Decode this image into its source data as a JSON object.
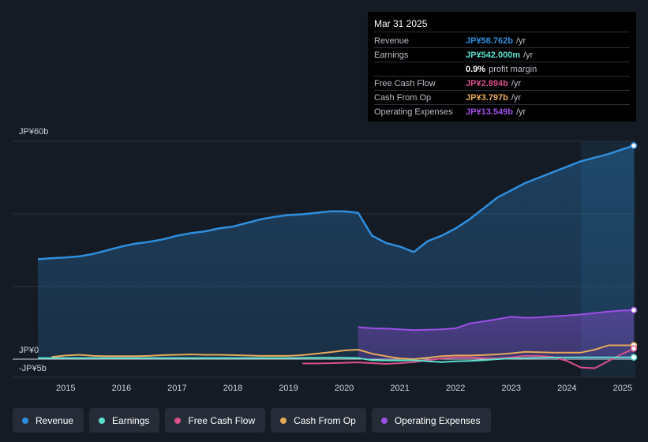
{
  "chart_data": {
    "type": "line",
    "y_axis": {
      "top_label": "JP¥60b",
      "zero_label": "JP¥0",
      "bottom_label": "-JP¥5b",
      "ylim": [
        -5,
        60
      ]
    },
    "x_ticks": [
      "2015",
      "2016",
      "2017",
      "2018",
      "2019",
      "2020",
      "2021",
      "2022",
      "2023",
      "2024",
      "2025"
    ],
    "x_range": [
      2014.5,
      2025.2
    ],
    "highlight_from": 2024.25,
    "series": [
      {
        "name": "Revenue",
        "color": "#2f8fdf",
        "fill": true,
        "x": [
          2014.5,
          2014.75,
          2015.0,
          2015.25,
          2015.5,
          2015.75,
          2016.0,
          2016.25,
          2016.5,
          2016.75,
          2017.0,
          2017.25,
          2017.5,
          2017.75,
          2018.0,
          2018.25,
          2018.5,
          2018.75,
          2019.0,
          2019.25,
          2019.5,
          2019.75,
          2020.0,
          2020.25,
          2020.5,
          2020.75,
          2021.0,
          2021.25,
          2021.5,
          2021.75,
          2022.0,
          2022.25,
          2022.5,
          2022.75,
          2023.0,
          2023.25,
          2023.5,
          2023.75,
          2024.0,
          2024.25,
          2024.5,
          2024.75,
          2025.0,
          2025.2
        ],
        "values": [
          27.5,
          27.8,
          28.0,
          28.3,
          29.0,
          30.0,
          31.0,
          31.8,
          32.3,
          33.0,
          34.0,
          34.7,
          35.2,
          36.0,
          36.5,
          37.5,
          38.5,
          39.2,
          39.7,
          39.9,
          40.3,
          40.7,
          40.7,
          40.3,
          34.0,
          32.0,
          31.0,
          29.5,
          32.5,
          34.0,
          36.0,
          38.5,
          41.5,
          44.5,
          46.5,
          48.5,
          50.0,
          51.5,
          53.0,
          54.5,
          55.5,
          56.5,
          57.8,
          58.8
        ]
      },
      {
        "name": "Operating Expenses",
        "color": "#9d4ee6",
        "fill": true,
        "x": [
          2020.25,
          2020.5,
          2020.75,
          2021.0,
          2021.25,
          2021.5,
          2021.75,
          2022.0,
          2022.25,
          2022.5,
          2022.75,
          2023.0,
          2023.25,
          2023.5,
          2023.75,
          2024.0,
          2024.25,
          2024.5,
          2024.75,
          2025.0,
          2025.2
        ],
        "values": [
          8.8,
          8.5,
          8.4,
          8.2,
          8.0,
          8.1,
          8.2,
          8.5,
          9.8,
          10.4,
          11.0,
          11.7,
          11.4,
          11.5,
          11.8,
          12.0,
          12.3,
          12.7,
          13.1,
          13.4,
          13.5
        ]
      },
      {
        "name": "Cash From Op",
        "color": "#e8a95a",
        "fill": false,
        "x": [
          2014.75,
          2015.0,
          2015.25,
          2015.5,
          2015.75,
          2016.0,
          2016.25,
          2016.5,
          2016.75,
          2017.0,
          2017.25,
          2017.5,
          2017.75,
          2018.0,
          2018.25,
          2018.5,
          2018.75,
          2019.0,
          2019.25,
          2019.5,
          2019.75,
          2020.0,
          2020.25,
          2020.5,
          2020.75,
          2021.0,
          2021.25,
          2021.5,
          2021.75,
          2022.0,
          2022.25,
          2022.5,
          2022.75,
          2023.0,
          2023.25,
          2023.5,
          2023.75,
          2024.0,
          2024.25,
          2024.5,
          2024.75,
          2025.0,
          2025.2
        ],
        "values": [
          0.6,
          1.0,
          1.2,
          0.9,
          0.8,
          0.8,
          0.8,
          0.9,
          1.1,
          1.2,
          1.3,
          1.2,
          1.2,
          1.1,
          1.0,
          0.9,
          0.9,
          0.9,
          1.1,
          1.5,
          1.9,
          2.4,
          2.6,
          1.5,
          0.8,
          0.2,
          0.0,
          0.4,
          0.8,
          1.0,
          1.0,
          1.1,
          1.3,
          1.6,
          2.0,
          1.9,
          1.8,
          1.8,
          1.8,
          2.6,
          3.8,
          3.8,
          3.8
        ]
      },
      {
        "name": "Free Cash Flow",
        "color": "#d9508a",
        "fill": false,
        "x": [
          2019.25,
          2019.5,
          2019.75,
          2020.0,
          2020.25,
          2020.5,
          2020.75,
          2021.0,
          2021.25,
          2021.5,
          2021.75,
          2022.0,
          2022.25,
          2022.5,
          2022.75,
          2023.0,
          2023.25,
          2023.5,
          2023.75,
          2024.0,
          2024.25,
          2024.5,
          2024.75,
          2025.0,
          2025.2
        ],
        "values": [
          -1.2,
          -1.2,
          -1.1,
          -1.0,
          -0.9,
          -1.1,
          -1.3,
          -1.1,
          -0.8,
          -0.3,
          0.2,
          0.5,
          0.5,
          0.3,
          0.2,
          0.5,
          0.9,
          0.9,
          0.6,
          -0.5,
          -2.3,
          -2.5,
          -0.5,
          1.5,
          2.9
        ]
      },
      {
        "name": "Earnings",
        "color": "#5ce0cc",
        "fill": false,
        "x": [
          2014.5,
          2015.0,
          2015.5,
          2016.0,
          2016.5,
          2017.0,
          2017.5,
          2018.0,
          2018.5,
          2019.0,
          2019.5,
          2020.0,
          2020.25,
          2020.5,
          2020.75,
          2021.0,
          2021.25,
          2021.5,
          2021.75,
          2022.0,
          2022.25,
          2022.5,
          2022.75,
          2023.0,
          2023.5,
          2024.0,
          2024.5,
          2025.0,
          2025.2
        ],
        "values": [
          0.3,
          0.3,
          0.3,
          0.3,
          0.3,
          0.3,
          0.3,
          0.3,
          0.3,
          0.3,
          0.4,
          0.4,
          0.3,
          -0.3,
          -0.4,
          -0.4,
          -0.3,
          -0.6,
          -0.8,
          -0.6,
          -0.5,
          -0.3,
          0.0,
          0.2,
          0.4,
          0.5,
          0.5,
          0.5,
          0.5
        ]
      }
    ]
  },
  "tooltip": {
    "date": "Mar 31 2025",
    "rows": [
      {
        "label": "Revenue",
        "value": "JP¥58.762b",
        "unit": "/yr",
        "color": "#2f8fdf"
      },
      {
        "label": "Earnings",
        "value": "JP¥542.000m",
        "unit": "/yr",
        "color": "#5ce0cc"
      },
      {
        "label": "",
        "value": "0.9%",
        "unit": "profit margin",
        "color": "#ffffff"
      },
      {
        "label": "Free Cash Flow",
        "value": "JP¥2.894b",
        "unit": "/yr",
        "color": "#d9508a"
      },
      {
        "label": "Cash From Op",
        "value": "JP¥3.797b",
        "unit": "/yr",
        "color": "#e8a95a"
      },
      {
        "label": "Operating Expenses",
        "value": "JP¥13.549b",
        "unit": "/yr",
        "color": "#9d4ee6"
      }
    ]
  },
  "legend": [
    {
      "label": "Revenue",
      "color": "#2f8fdf"
    },
    {
      "label": "Earnings",
      "color": "#5ce0cc"
    },
    {
      "label": "Free Cash Flow",
      "color": "#d9508a"
    },
    {
      "label": "Cash From Op",
      "color": "#e8a95a"
    },
    {
      "label": "Operating Expenses",
      "color": "#9d4ee6"
    }
  ]
}
